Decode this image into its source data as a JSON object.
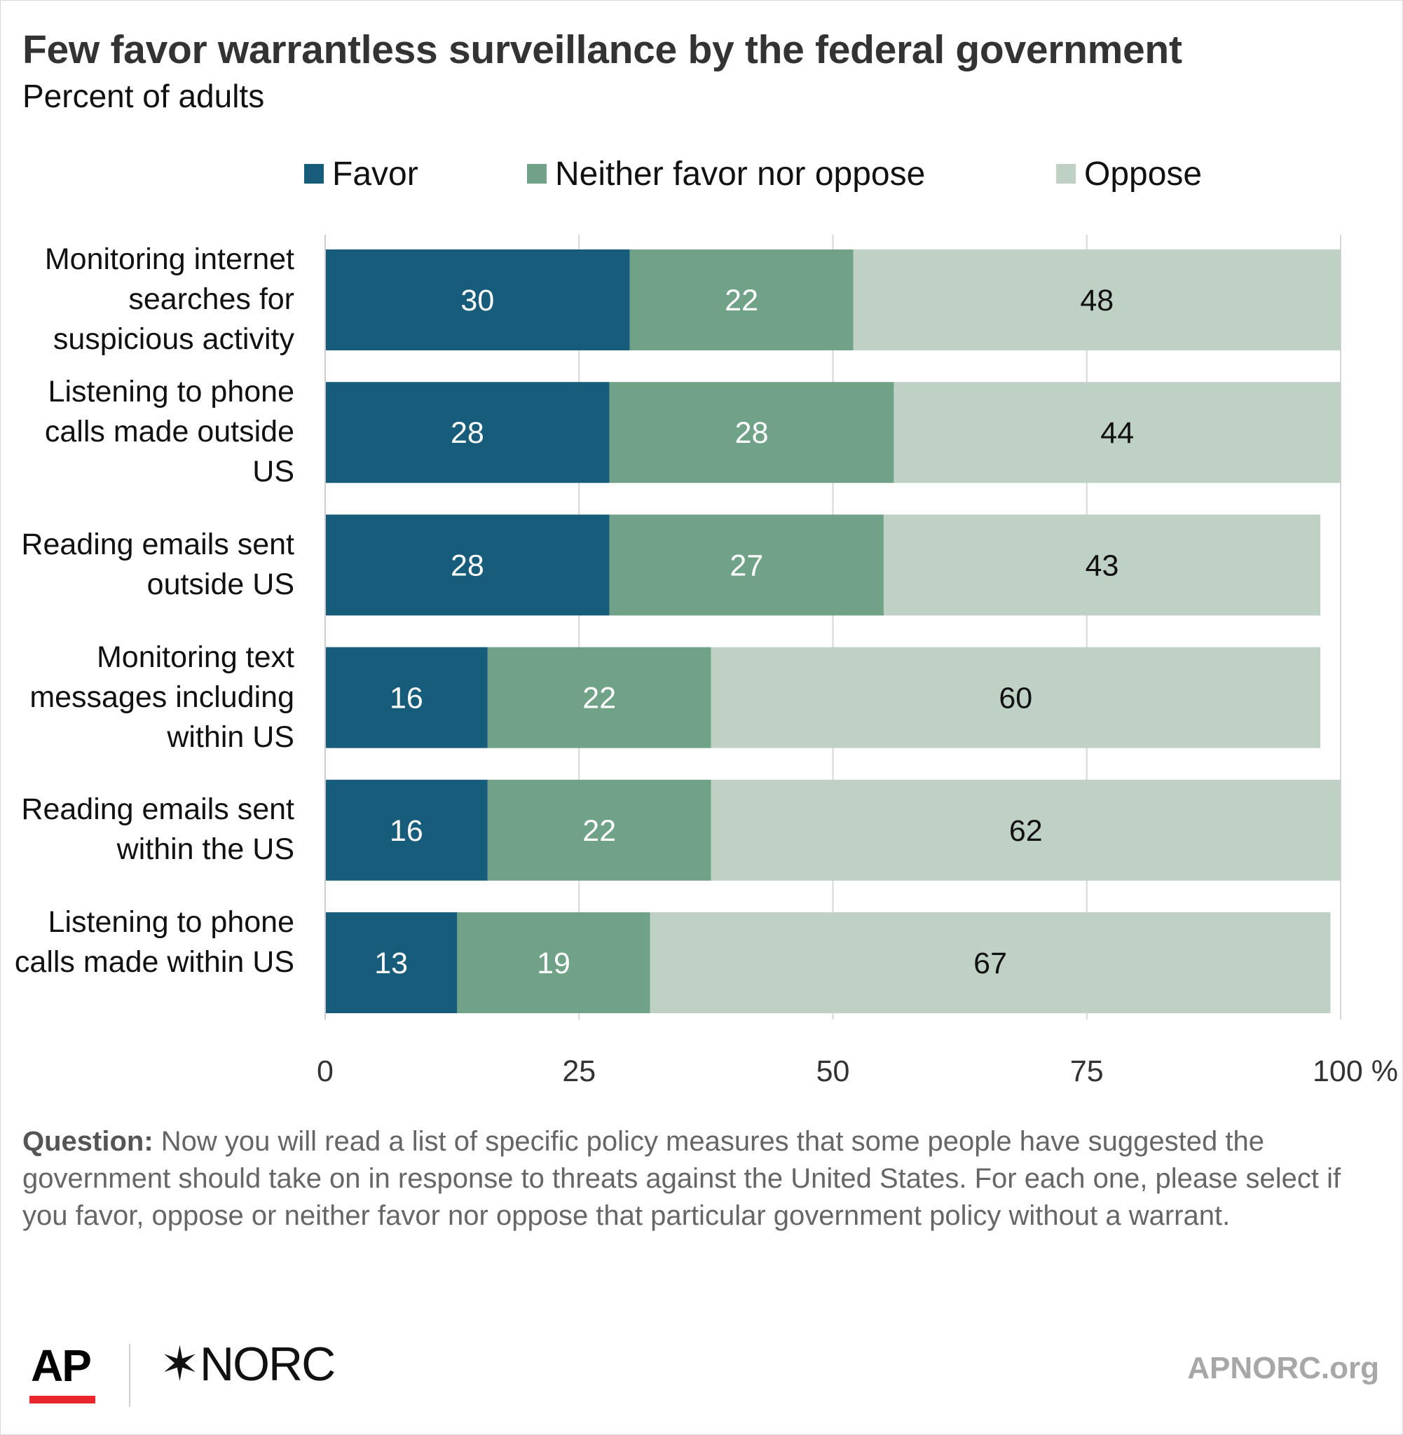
{
  "title": "Few favor warrantless surveillance by the federal government",
  "subtitle": "Percent of adults",
  "legend": [
    {
      "label": "Favor",
      "color": "#175c7b"
    },
    {
      "label": "Neither favor nor oppose",
      "color": "#6fa287"
    },
    {
      "label": "Oppose",
      "color": "#bfd0c4"
    }
  ],
  "chart_data": {
    "type": "bar",
    "orientation": "horizontal",
    "stacked": true,
    "categories": [
      "Monitoring internet searches for suspicious activity",
      "Listening to phone calls made outside US",
      "Reading emails sent outside US",
      "Monitoring text messages including within US",
      "Reading emails sent within the US",
      "Listening to phone calls made within US"
    ],
    "series": [
      {
        "name": "Favor",
        "color": "#175c7b",
        "label_color": "#ffffff",
        "values": [
          30,
          28,
          28,
          16,
          16,
          13
        ]
      },
      {
        "name": "Neither favor nor oppose",
        "color": "#6fa287",
        "label_color": "#ffffff",
        "values": [
          22,
          28,
          27,
          22,
          22,
          19
        ]
      },
      {
        "name": "Oppose",
        "color": "#bfd0c4",
        "label_color": "#111111",
        "values": [
          48,
          44,
          43,
          60,
          62,
          67
        ]
      }
    ],
    "xlim": [
      0,
      100
    ],
    "xticks": [
      0,
      25,
      50,
      75,
      100
    ],
    "xtick_labels": [
      "0",
      "25",
      "50",
      "75",
      "100 %"
    ],
    "grid": true,
    "legend_position": "top"
  },
  "question": {
    "label": "Question:",
    "text": " Now you will read a list of specific policy measures that some people have suggested the government should take on in response to threats against the United States. For each one, please select if you favor, oppose or neither favor nor oppose that particular government policy without a warrant."
  },
  "logos": {
    "ap": "AP",
    "norc_star": "✶",
    "norc": "NORC",
    "site": "APNORC.org"
  }
}
